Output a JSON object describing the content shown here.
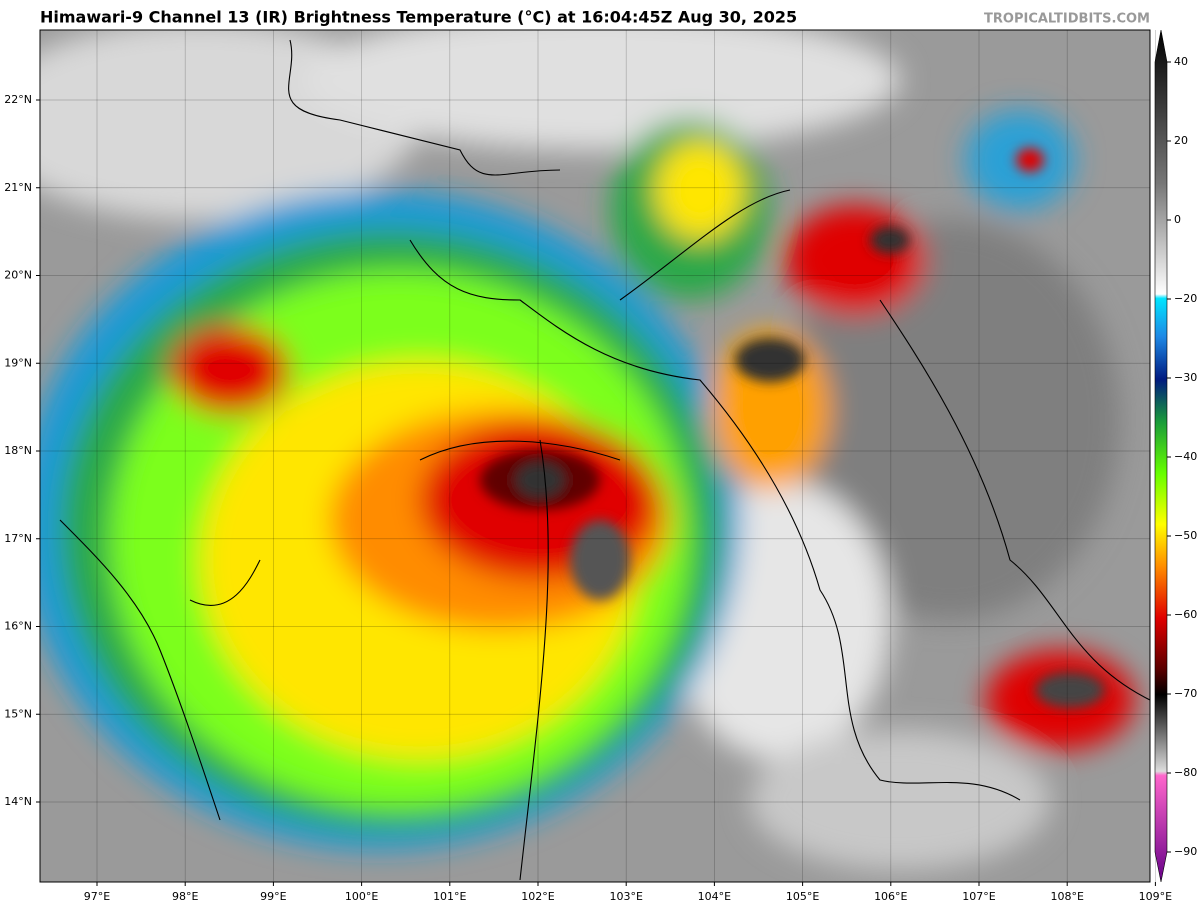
{
  "header": {
    "title": "Himawari-9 Channel 13 (IR) Brightness Temperature (°C) at 16:04:45Z Aug 30, 2025",
    "watermark": "TROPICALTIDBITS.COM"
  },
  "map": {
    "lon_labels": [
      "97°E",
      "98°E",
      "99°E",
      "100°E",
      "101°E",
      "102°E",
      "103°E",
      "104°E",
      "105°E",
      "106°E",
      "107°E",
      "108°E",
      "109°E"
    ],
    "lat_labels": [
      "22°N",
      "21°N",
      "20°N",
      "19°N",
      "18°N",
      "17°N",
      "16°N",
      "15°N",
      "14°N"
    ]
  },
  "colorbar": {
    "tick_labels": [
      "40",
      "20",
      "0",
      "−20",
      "−30",
      "−40",
      "−50",
      "−60",
      "−70",
      "−80",
      "−90"
    ]
  }
}
